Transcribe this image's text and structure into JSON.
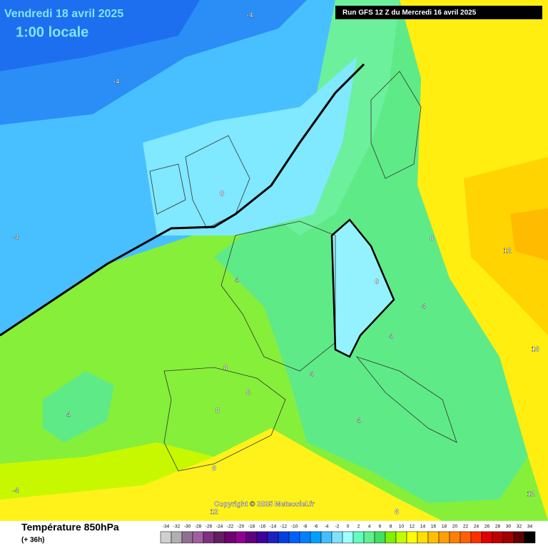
{
  "header": {
    "date": "Vendredi 18 avril 2025",
    "time": "1:00 locale",
    "run": "Run GFS 12 Z du Mercredi 16 avril 2025"
  },
  "copyright": "Copyright © 2025 Meteociel.fr",
  "footer": {
    "title": "Température 850hPa",
    "lead": "(+ 36h)"
  },
  "contour_labels": [
    -4,
    -4,
    -4,
    0,
    0,
    4,
    4,
    4,
    4,
    4,
    8,
    8,
    8,
    8,
    8,
    12,
    12,
    12,
    16,
    -4,
    4,
    8
  ],
  "legend": {
    "scale": [
      -34,
      -32,
      -30,
      -28,
      -26,
      -24,
      -22,
      -20,
      -18,
      -16,
      -14,
      -12,
      -10,
      -8,
      -6,
      -4,
      -2,
      0,
      2,
      4,
      6,
      8,
      10,
      12,
      14,
      16,
      18,
      20,
      22,
      24,
      26,
      28,
      30,
      32,
      34
    ],
    "colors": [
      "#d0d0d0",
      "#b0b0b0",
      "#907090",
      "#a060a0",
      "#803080",
      "#602060",
      "#700070",
      "#900090",
      "#600080",
      "#4000a0",
      "#2020c0",
      "#0040e0",
      "#0060ff",
      "#0080ff",
      "#00a0ff",
      "#40c0ff",
      "#80e0ff",
      "#a0ffff",
      "#60ffc0",
      "#60f090",
      "#40e060",
      "#80f000",
      "#c0ff00",
      "#ffff00",
      "#ffe000",
      "#ffc000",
      "#ffa000",
      "#ff8000",
      "#ff6000",
      "#ff3000",
      "#e00000",
      "#c00000",
      "#a00000",
      "#600000",
      "#000000"
    ]
  }
}
